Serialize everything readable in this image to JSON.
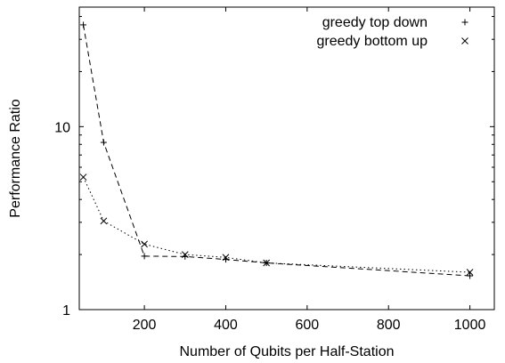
{
  "chart_data": {
    "type": "line",
    "title": "",
    "xlabel": "Number of Qubits per Half-Station",
    "ylabel": "Performance Ratio",
    "xlim": [
      40,
      1060
    ],
    "ylim": [
      1,
      45
    ],
    "yscale": "log",
    "x_ticks": [
      200,
      400,
      600,
      800,
      1000
    ],
    "x_tick_labels": [
      "200",
      "400",
      "600",
      "800",
      "1000"
    ],
    "y_ticks": [
      1,
      10
    ],
    "y_tick_labels": [
      "1",
      "10"
    ],
    "grid": false,
    "legend_position": "top-right",
    "series": [
      {
        "name": "greedy top down",
        "marker": "plus",
        "line_style": "dashed",
        "x": [
          50,
          100,
          200,
          300,
          400,
          500,
          1000
        ],
        "y": [
          36,
          8.2,
          1.96,
          1.95,
          1.88,
          1.8,
          1.53
        ]
      },
      {
        "name": "greedy bottom up",
        "marker": "cross",
        "line_style": "dotted",
        "x": [
          50,
          100,
          200,
          300,
          400,
          500,
          1000
        ],
        "y": [
          5.3,
          3.05,
          2.28,
          2.0,
          1.93,
          1.8,
          1.6
        ]
      }
    ]
  }
}
